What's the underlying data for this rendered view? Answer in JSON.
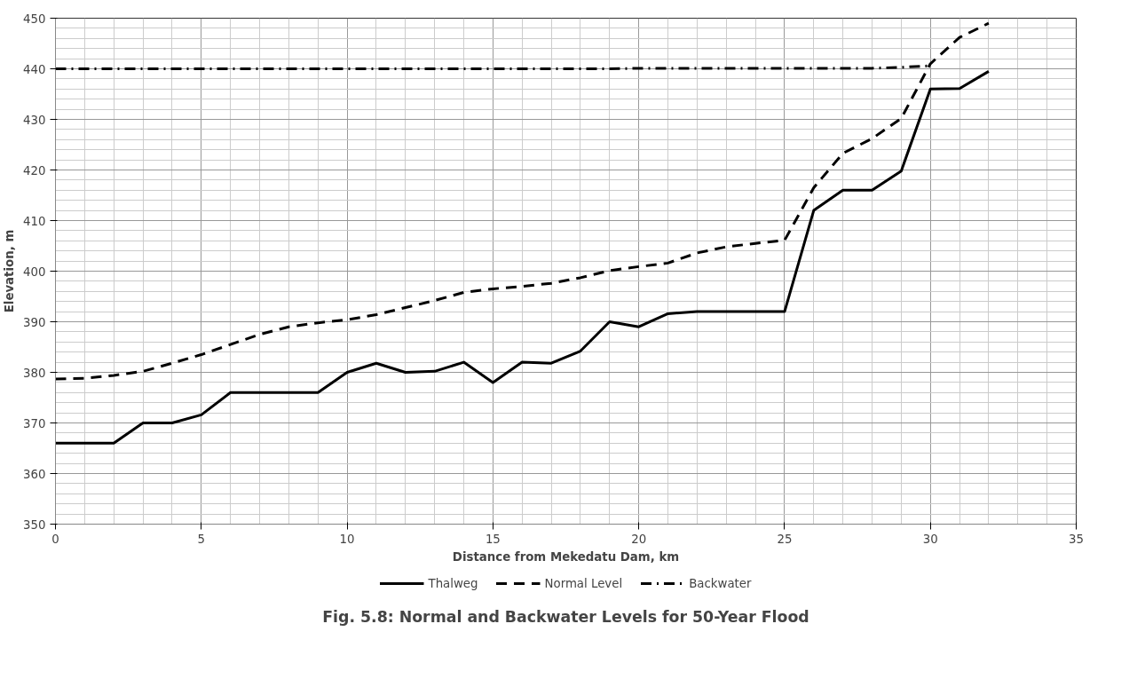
{
  "chart_data": {
    "type": "line",
    "title": "Fig. 5.8: Normal and Backwater Levels for 50-Year Flood",
    "xlabel": "Distance from Mekedatu Dam, km",
    "ylabel": "Elevation, m",
    "xlim": [
      0,
      35
    ],
    "xticks": [
      0,
      5,
      10,
      15,
      20,
      25,
      30,
      35
    ],
    "ylim": [
      350,
      450
    ],
    "yticks": [
      350,
      360,
      370,
      380,
      390,
      400,
      410,
      420,
      430,
      440,
      450
    ],
    "grid": true,
    "legend": "bottom",
    "marker": "none",
    "series": [
      {
        "name": "Thalweg",
        "color": "#000000",
        "line_style": "solid",
        "x": [
          0,
          1,
          2,
          3,
          4,
          5,
          6,
          7,
          8,
          9,
          10,
          11,
          12,
          13,
          14,
          15,
          16,
          17,
          18,
          19,
          20,
          21,
          22,
          23,
          24,
          25,
          26,
          27,
          28,
          29,
          30,
          31,
          32
        ],
        "values": [
          366,
          366,
          366,
          370,
          370,
          371.6,
          376,
          376,
          376,
          376,
          380,
          381.8,
          380,
          380.2,
          382,
          378,
          382,
          381.8,
          384.2,
          390,
          389,
          391.6,
          392,
          392,
          392,
          392,
          412,
          416,
          416,
          419.8,
          436,
          436.1,
          439.5
        ]
      },
      {
        "name": "Normal Level",
        "color": "#000000",
        "line_style": "dashed",
        "x": [
          0,
          1,
          2,
          3,
          4,
          5,
          6,
          7,
          8,
          9,
          10,
          11,
          12,
          13,
          14,
          15,
          16,
          17,
          18,
          19,
          20,
          21,
          22,
          23,
          24,
          25,
          26,
          27,
          28,
          29,
          30,
          31,
          32
        ],
        "values": [
          378.7,
          378.8,
          379.4,
          380.2,
          381.8,
          383.5,
          385.5,
          387.5,
          389,
          389.8,
          390.4,
          391.4,
          392.8,
          394.2,
          395.8,
          396.5,
          397,
          397.6,
          398.7,
          400.1,
          400.9,
          401.6,
          403.6,
          404.8,
          405.5,
          406.1,
          416.5,
          423.3,
          426.2,
          430.2,
          441,
          446.2,
          449
        ]
      },
      {
        "name": "Backwater",
        "color": "#000000",
        "line_style": "dashdot",
        "x": [
          0,
          1,
          2,
          3,
          4,
          5,
          6,
          7,
          8,
          9,
          10,
          11,
          12,
          13,
          14,
          15,
          16,
          17,
          18,
          19,
          20,
          21,
          22,
          23,
          24,
          25,
          26,
          27,
          28,
          29,
          30
        ],
        "values": [
          440,
          440,
          440,
          440,
          440,
          440,
          440,
          440,
          440,
          440,
          440,
          440,
          440,
          440,
          440,
          440,
          440,
          440,
          440,
          440,
          440.1,
          440.1,
          440.1,
          440.1,
          440.1,
          440.1,
          440.1,
          440.1,
          440.1,
          440.3,
          440.6
        ]
      }
    ]
  }
}
